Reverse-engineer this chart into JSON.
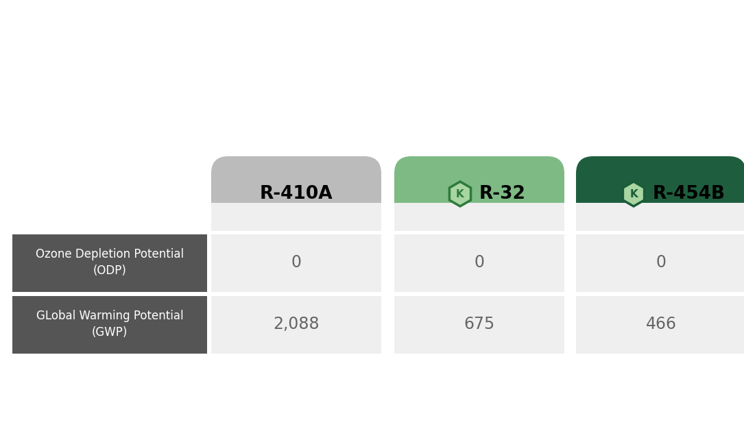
{
  "bg_color": "#ffffff",
  "dark_label_bg": "#555555",
  "cell_bg": "#efefef",
  "cell_text_color": "#666666",
  "label_text_color": "#ffffff",
  "col_headers": [
    "R-410A",
    "R-32",
    "R-454B"
  ],
  "col_top_colors": [
    "#bbbbbb",
    "#7dba84",
    "#1e5e3e"
  ],
  "row_labels": [
    "Ozone Depletion Potential\n(ODP)",
    "GLobal Warming Potential\n(GWP)"
  ],
  "values": [
    [
      "0",
      "0",
      "0"
    ],
    [
      "2,088",
      "675",
      "466"
    ]
  ],
  "has_icon": [
    false,
    true,
    true
  ],
  "icon_color_r32": "#2d7a3a",
  "icon_color_r454b": "#1a5c38",
  "icon_fill_r32": "#a8d5a2",
  "icon_fill_r454b": "#a8d5a2"
}
